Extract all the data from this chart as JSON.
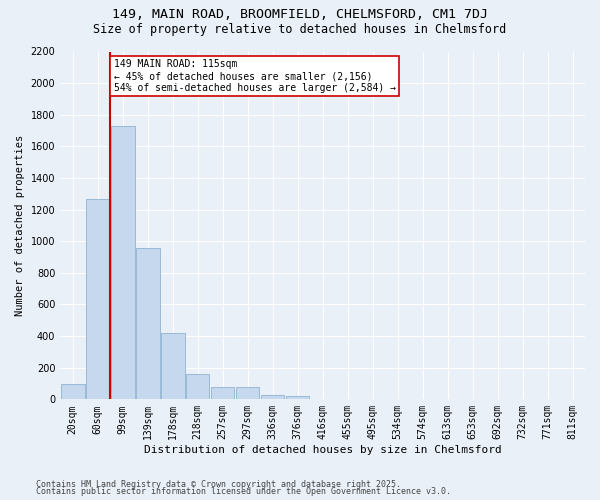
{
  "title1": "149, MAIN ROAD, BROOMFIELD, CHELMSFORD, CM1 7DJ",
  "title2": "Size of property relative to detached houses in Chelmsford",
  "xlabel": "Distribution of detached houses by size in Chelmsford",
  "ylabel": "Number of detached properties",
  "categories": [
    "20sqm",
    "60sqm",
    "99sqm",
    "139sqm",
    "178sqm",
    "218sqm",
    "257sqm",
    "297sqm",
    "336sqm",
    "376sqm",
    "416sqm",
    "455sqm",
    "495sqm",
    "534sqm",
    "574sqm",
    "613sqm",
    "653sqm",
    "692sqm",
    "732sqm",
    "771sqm",
    "811sqm"
  ],
  "values": [
    100,
    1270,
    1730,
    960,
    420,
    160,
    75,
    75,
    30,
    20,
    5,
    0,
    0,
    0,
    0,
    0,
    0,
    0,
    0,
    0,
    0
  ],
  "bar_color": "#c5d8ed",
  "bar_edge_color": "#8fb3d0",
  "vline_x": 1.5,
  "vline_color": "#cc0000",
  "annotation_text": "149 MAIN ROAD: 115sqm\n← 45% of detached houses are smaller (2,156)\n54% of semi-detached houses are larger (2,584) →",
  "annotation_box_color": "#ffffff",
  "annotation_box_edge": "#cc0000",
  "ylim": [
    0,
    2200
  ],
  "yticks": [
    0,
    200,
    400,
    600,
    800,
    1000,
    1200,
    1400,
    1600,
    1800,
    2000,
    2200
  ],
  "bg_color": "#eaf0f8",
  "grid_color": "#ffffff",
  "footer1": "Contains HM Land Registry data © Crown copyright and database right 2025.",
  "footer2": "Contains public sector information licensed under the Open Government Licence v3.0.",
  "title1_fontsize": 9.5,
  "title2_fontsize": 8.5,
  "xlabel_fontsize": 8,
  "ylabel_fontsize": 7.5,
  "tick_fontsize": 7,
  "annot_fontsize": 7,
  "footer_fontsize": 6
}
